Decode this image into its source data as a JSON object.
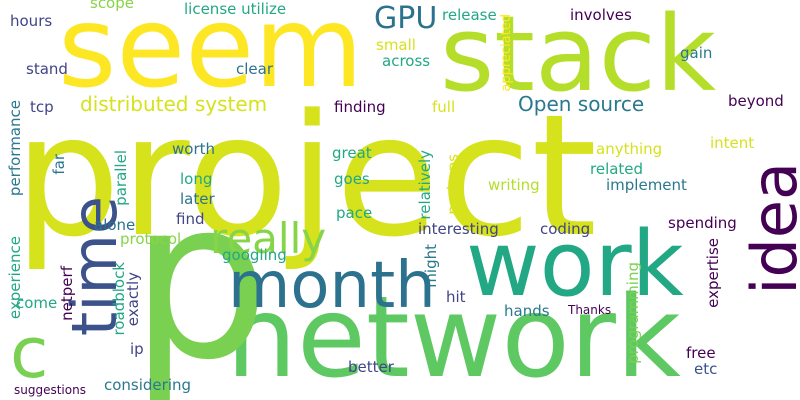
{
  "words": {
    "project": "project",
    "seem": "seem",
    "stack": "stack",
    "network": "network",
    "p": "p",
    "work": "work",
    "month": "month",
    "idea": "idea",
    "time": "time",
    "c": "c",
    "really": "really",
    "gpu": "GPU",
    "distributed_system": "distributed system",
    "open_source": "Open source",
    "scope": "scope",
    "license_utilize": "license utilize",
    "release": "release",
    "involves": "involves",
    "hours": "hours",
    "small": "small",
    "gain": "gain",
    "stand": "stand",
    "clear": "clear",
    "across": "across",
    "experience": "experience",
    "performance": "performance",
    "tcp": "tcp",
    "finding": "finding",
    "full": "full",
    "appreciated": "appreciated",
    "beyond": "beyond",
    "parallel": "parallel",
    "far": "far",
    "worth": "worth",
    "great": "great",
    "perhaps": "perhaps",
    "anything": "anything",
    "intent": "intent",
    "long": "long",
    "goes": "goes",
    "related": "related",
    "writing": "writing",
    "implement": "implement",
    "later": "later",
    "find": "find",
    "relatively": "relatively",
    "pace": "pace",
    "alone": "alone",
    "protocol": "protocol",
    "coding": "coding",
    "interesting": "interesting",
    "spending": "spending",
    "googling": "googling",
    "might": "might",
    "expertise": "expertise",
    "roadblock": "roadblock",
    "netperf": "netperf",
    "exactly": "exactly",
    "come": "come",
    "hit": "hit",
    "hands": "hands",
    "programming": "programming",
    "thanks": "Thanks",
    "ip": "ip",
    "free": "free",
    "etc": "etc",
    "better": "better",
    "considering": "considering",
    "suggestions": "suggestions"
  }
}
